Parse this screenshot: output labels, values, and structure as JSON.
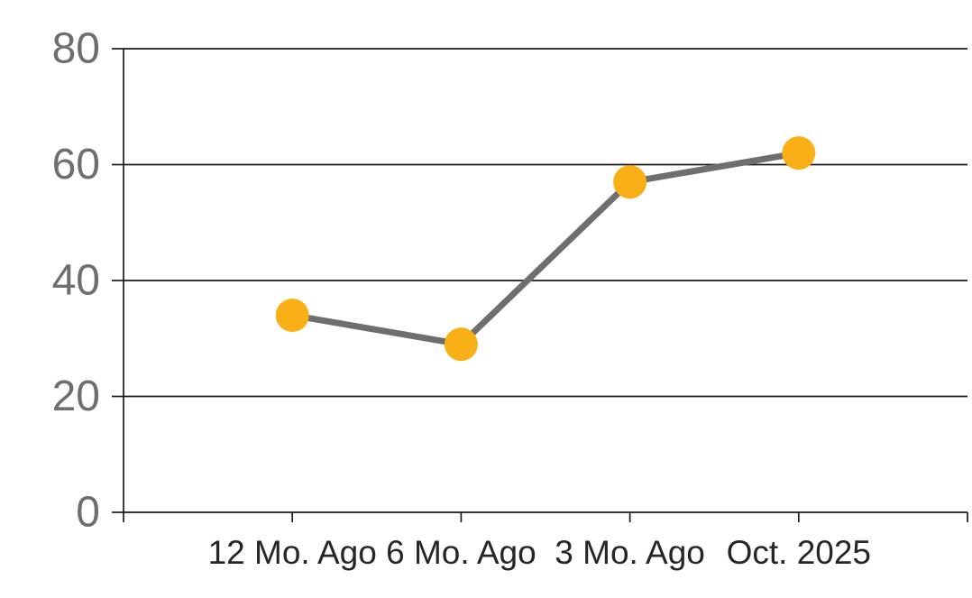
{
  "chart_data": {
    "type": "line",
    "title": "",
    "xlabel": "",
    "ylabel": "",
    "categories": [
      "12 Mo. Ago",
      "6 Mo. Ago",
      "3 Mo. Ago",
      "Oct. 2025"
    ],
    "values": [
      34,
      29,
      57,
      62
    ],
    "ylim": [
      0,
      80
    ],
    "yticks": [
      0,
      20,
      40,
      60,
      80
    ],
    "grid": true,
    "legend": "none",
    "marker_shape": "circle",
    "colors": {
      "marker": "#F9B016",
      "line": "#6E6E6E",
      "grid_axis": "#1A1A1A",
      "y_tick_label": "#6E6E6E",
      "x_tick_label": "#262626",
      "background": "#FFFFFF"
    }
  }
}
